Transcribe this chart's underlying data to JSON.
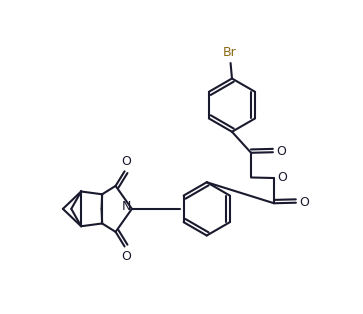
{
  "bg_color": "#ffffff",
  "line_color": "#1a1a2e",
  "br_color": "#8B6914",
  "bond_width": 1.5,
  "figsize": [
    3.63,
    3.14
  ],
  "dpi": 100,
  "xlim": [
    -0.05,
    1.0
  ],
  "ylim": [
    0.0,
    1.1
  ]
}
